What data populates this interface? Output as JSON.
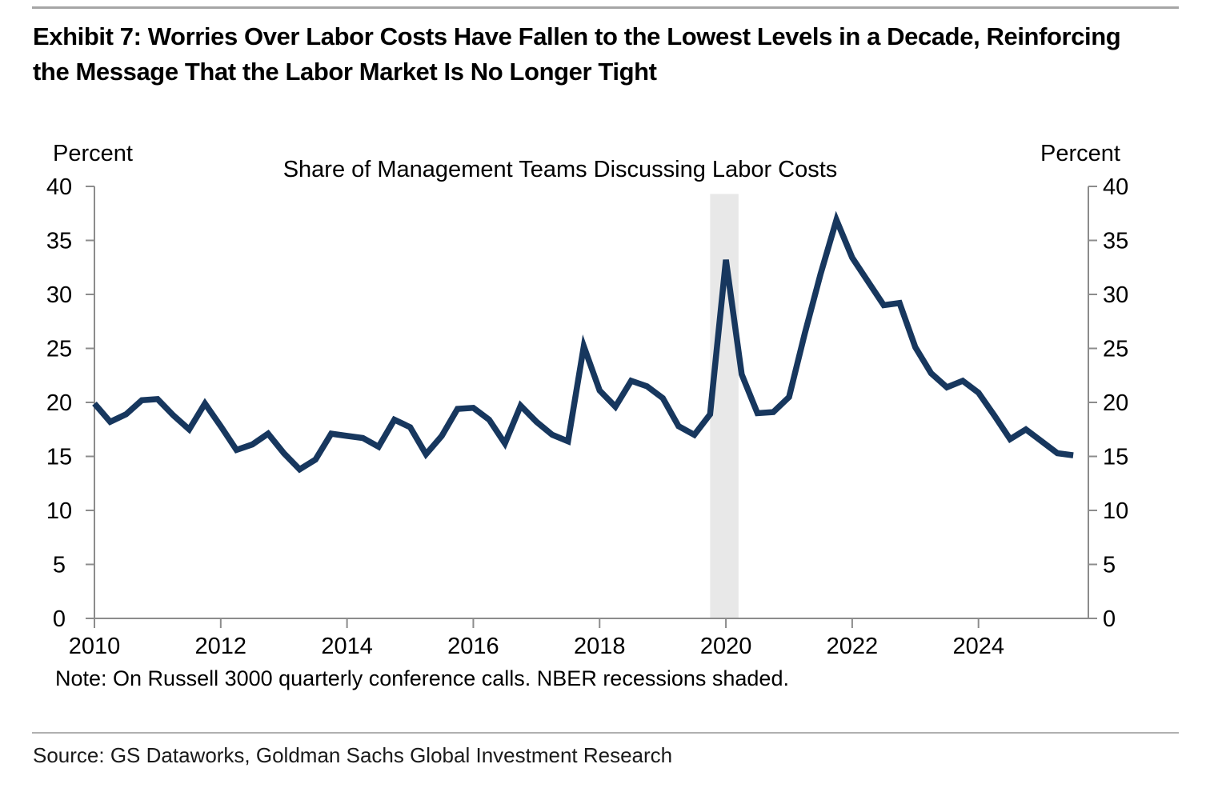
{
  "exhibit": {
    "title_lines": [
      "Exhibit 7: Worries Over Labor Costs Have Fallen to the Lowest Levels in a Decade, Reinforcing",
      "the Message That the Labor Market Is No Longer Tight"
    ]
  },
  "chart_data": {
    "type": "line",
    "title": "Share of Management Teams Discussing Labor Costs",
    "unit_label": "Percent",
    "ylabel": "Percent",
    "xlabel": "",
    "ylim": [
      0,
      40
    ],
    "y_ticks": [
      0,
      5,
      10,
      15,
      20,
      25,
      30,
      35,
      40
    ],
    "xlim": [
      2010,
      2025.74
    ],
    "x_ticks": [
      2010,
      2012,
      2014,
      2016,
      2018,
      2020,
      2022,
      2024
    ],
    "grid": false,
    "legend_position": "none",
    "line_color": "#17375e",
    "axis_color": "#8c8c8c",
    "recession_band": {
      "start": 2019.75,
      "end": 2020.2,
      "top_value": 39.3,
      "color": "#e8e8e8",
      "meaning": "NBER recession"
    },
    "series": [
      {
        "name": "Share of Management Teams Discussing Labor Costs",
        "x_unit": "year (quarterly)",
        "x": [
          2010.0,
          2010.25,
          2010.5,
          2010.75,
          2011.0,
          2011.25,
          2011.5,
          2011.75,
          2012.0,
          2012.25,
          2012.5,
          2012.75,
          2013.0,
          2013.25,
          2013.5,
          2013.75,
          2014.0,
          2014.25,
          2014.5,
          2014.75,
          2015.0,
          2015.25,
          2015.5,
          2015.75,
          2016.0,
          2016.25,
          2016.5,
          2016.75,
          2017.0,
          2017.25,
          2017.5,
          2017.75,
          2018.0,
          2018.25,
          2018.5,
          2018.75,
          2019.0,
          2019.25,
          2019.5,
          2019.75,
          2020.0,
          2020.25,
          2020.5,
          2020.75,
          2021.0,
          2021.25,
          2021.5,
          2021.75,
          2022.0,
          2022.25,
          2022.5,
          2022.75,
          2023.0,
          2023.25,
          2023.5,
          2023.75,
          2024.0,
          2024.25,
          2024.5,
          2024.75,
          2025.0,
          2025.25,
          2025.5
        ],
        "values": [
          19.9,
          18.2,
          18.9,
          20.2,
          20.3,
          18.8,
          17.5,
          19.9,
          17.8,
          15.6,
          16.1,
          17.1,
          15.3,
          13.8,
          14.7,
          17.1,
          16.9,
          16.7,
          15.9,
          18.4,
          17.7,
          15.2,
          16.9,
          19.4,
          19.5,
          18.4,
          16.2,
          19.7,
          18.2,
          17.0,
          16.4,
          25.2,
          21.1,
          19.6,
          22.0,
          21.5,
          20.4,
          17.8,
          17.0,
          18.9,
          33.2,
          22.6,
          19.0,
          19.1,
          20.5,
          26.4,
          31.9,
          36.9,
          33.4,
          31.2,
          29.0,
          29.2,
          25.1,
          22.7,
          21.4,
          22.0,
          20.9,
          18.8,
          16.6,
          17.5,
          16.4,
          15.3,
          15.1
        ]
      }
    ],
    "note": "Note: On Russell 3000 quarterly conference calls. NBER recessions shaded."
  },
  "source": "Source: GS Dataworks, Goldman Sachs Global Investment Research"
}
